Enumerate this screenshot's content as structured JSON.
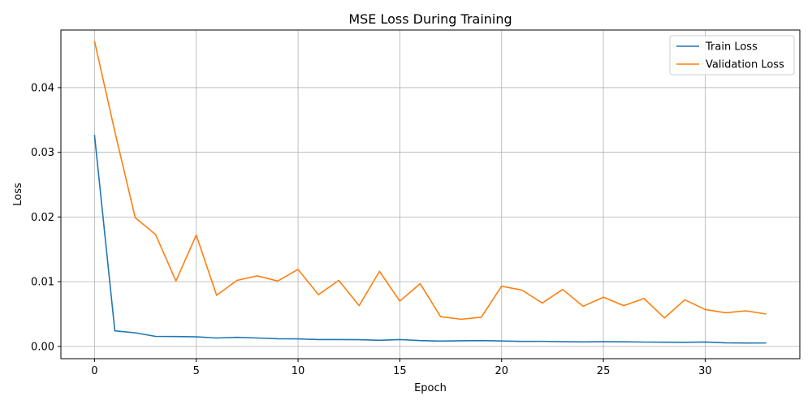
{
  "chart_data": {
    "type": "line",
    "title": "MSE Loss During Training",
    "xlabel": "Epoch",
    "ylabel": "Loss",
    "xlim": [
      -1.65,
      34.65
    ],
    "ylim": [
      -0.0019,
      0.0489
    ],
    "xticks": [
      0,
      5,
      10,
      15,
      20,
      25,
      30
    ],
    "yticks": [
      0.0,
      0.01,
      0.02,
      0.03,
      0.04
    ],
    "xtick_labels": [
      "0",
      "5",
      "10",
      "15",
      "20",
      "25",
      "30"
    ],
    "ytick_labels": [
      "0.00",
      "0.01",
      "0.02",
      "0.03",
      "0.04"
    ],
    "grid": true,
    "legend_position": "top-right",
    "x": [
      0,
      1,
      2,
      3,
      4,
      5,
      6,
      7,
      8,
      9,
      10,
      11,
      12,
      13,
      14,
      15,
      16,
      17,
      18,
      19,
      20,
      21,
      22,
      23,
      24,
      25,
      26,
      27,
      28,
      29,
      30,
      31,
      32,
      33
    ],
    "series": [
      {
        "name": "Train Loss",
        "color": "#1f77b4",
        "values": [
          0.0327,
          0.0024,
          0.0021,
          0.00155,
          0.00152,
          0.00148,
          0.0013,
          0.0014,
          0.0013,
          0.00118,
          0.00116,
          0.00105,
          0.00105,
          0.00104,
          0.00094,
          0.00106,
          0.0009,
          0.00082,
          0.00087,
          0.0009,
          0.00084,
          0.00077,
          0.00078,
          0.00073,
          0.0007,
          0.00073,
          0.00071,
          0.00067,
          0.00065,
          0.00063,
          0.00068,
          0.00055,
          0.00052,
          0.00053
        ]
      },
      {
        "name": "Validation Loss",
        "color": "#ff7f0e",
        "values": [
          0.0472,
          0.0332,
          0.0199,
          0.0173,
          0.0101,
          0.0172,
          0.0079,
          0.0102,
          0.0109,
          0.0101,
          0.0119,
          0.008,
          0.0102,
          0.0063,
          0.0116,
          0.007,
          0.0097,
          0.0046,
          0.0042,
          0.0045,
          0.0093,
          0.0087,
          0.0067,
          0.0088,
          0.0062,
          0.0076,
          0.0063,
          0.0074,
          0.0044,
          0.0072,
          0.0057,
          0.0052,
          0.0055,
          0.005
        ]
      }
    ]
  }
}
